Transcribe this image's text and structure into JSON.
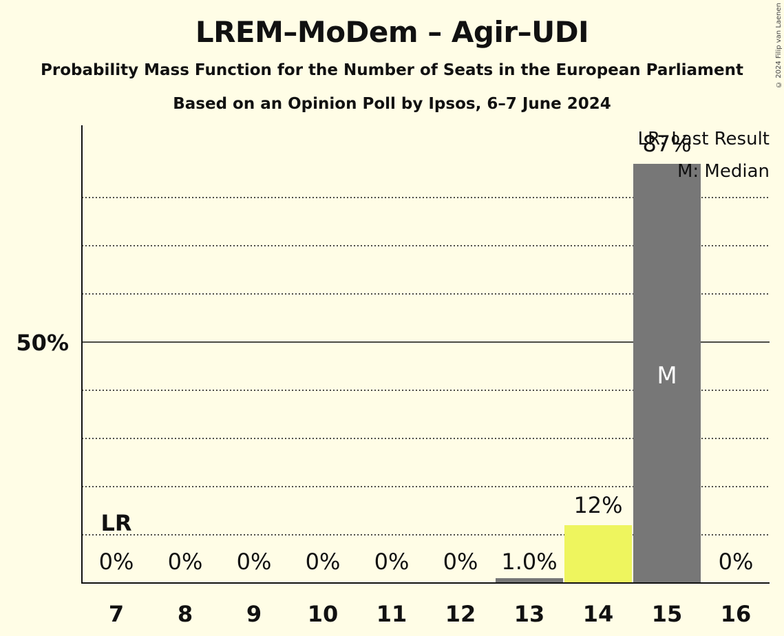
{
  "title": "LREM–MoDem – Agir–UDI",
  "subtitle": "Probability Mass Function for the Number of Seats in the European Parliament",
  "subtitle2": "Based on an Opinion Poll by Ipsos, 6–7 June 2024",
  "copyright": "© 2024 Filip van Laenen",
  "colors": {
    "background": "#fffde6",
    "bar_default": "#777777",
    "bar_highlight": "#eef55e",
    "axis": "#111111"
  },
  "chart_data": {
    "type": "bar",
    "categories": [
      "7",
      "8",
      "9",
      "10",
      "11",
      "12",
      "13",
      "14",
      "15",
      "16"
    ],
    "values": [
      0,
      0,
      0,
      0,
      0,
      0,
      1.0,
      12,
      87,
      0
    ],
    "value_labels": [
      "0%",
      "0%",
      "0%",
      "0%",
      "0%",
      "0%",
      "1.0%",
      "12%",
      "87%",
      "0%"
    ],
    "highlight_category": "14",
    "median_category": "15",
    "median_marker": "M",
    "last_result_category": "7",
    "last_result_marker": "LR",
    "ylim": [
      0,
      95
    ],
    "ytick_label": "50%",
    "ytick_value": 50,
    "gridlines": [
      10,
      20,
      30,
      40,
      60,
      70,
      80
    ],
    "legend": {
      "last_result": "LR: Last Result",
      "median": "M: Median",
      "placement": "top-right"
    }
  }
}
